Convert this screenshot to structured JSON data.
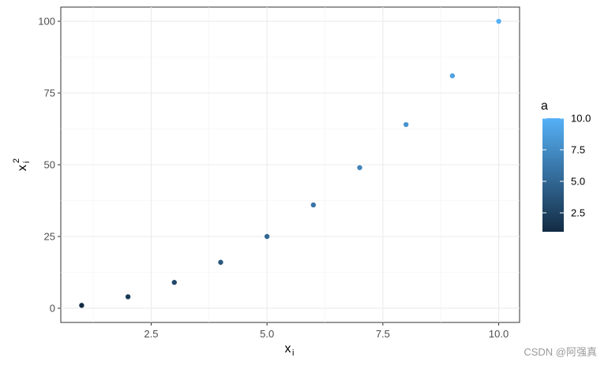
{
  "chart_data": {
    "type": "scatter",
    "x": [
      1,
      2,
      3,
      4,
      5,
      6,
      7,
      8,
      9,
      10
    ],
    "y": [
      1,
      4,
      9,
      16,
      25,
      36,
      49,
      64,
      81,
      100
    ],
    "color_values": [
      1,
      2,
      3,
      4,
      5,
      6,
      7,
      8,
      9,
      10
    ],
    "xlabel": "x",
    "xlabel_subscript": "i",
    "ylabel": "x",
    "ylabel_subscript": "i",
    "ylabel_superscript": "2",
    "xlim": [
      0.55,
      10.45
    ],
    "ylim": [
      -4.95,
      104.95
    ],
    "xticks": [
      2.5,
      5.0,
      7.5,
      10.0
    ],
    "xtick_labels": [
      "2.5",
      "5.0",
      "7.5",
      "10.0"
    ],
    "yticks": [
      0,
      25,
      50,
      75,
      100
    ],
    "ytick_labels": [
      "0",
      "25",
      "50",
      "75",
      "100"
    ],
    "grid": true,
    "legend": {
      "title": "a",
      "position": "right",
      "range": [
        1,
        10
      ],
      "ticks": [
        2.5,
        5.0,
        7.5,
        10.0
      ],
      "tick_labels": [
        "2.5",
        "5.0",
        "7.5",
        "10.0"
      ],
      "color_low": "#132B43",
      "color_high": "#56B1F7"
    }
  },
  "watermark": "CSDN @阿强真"
}
